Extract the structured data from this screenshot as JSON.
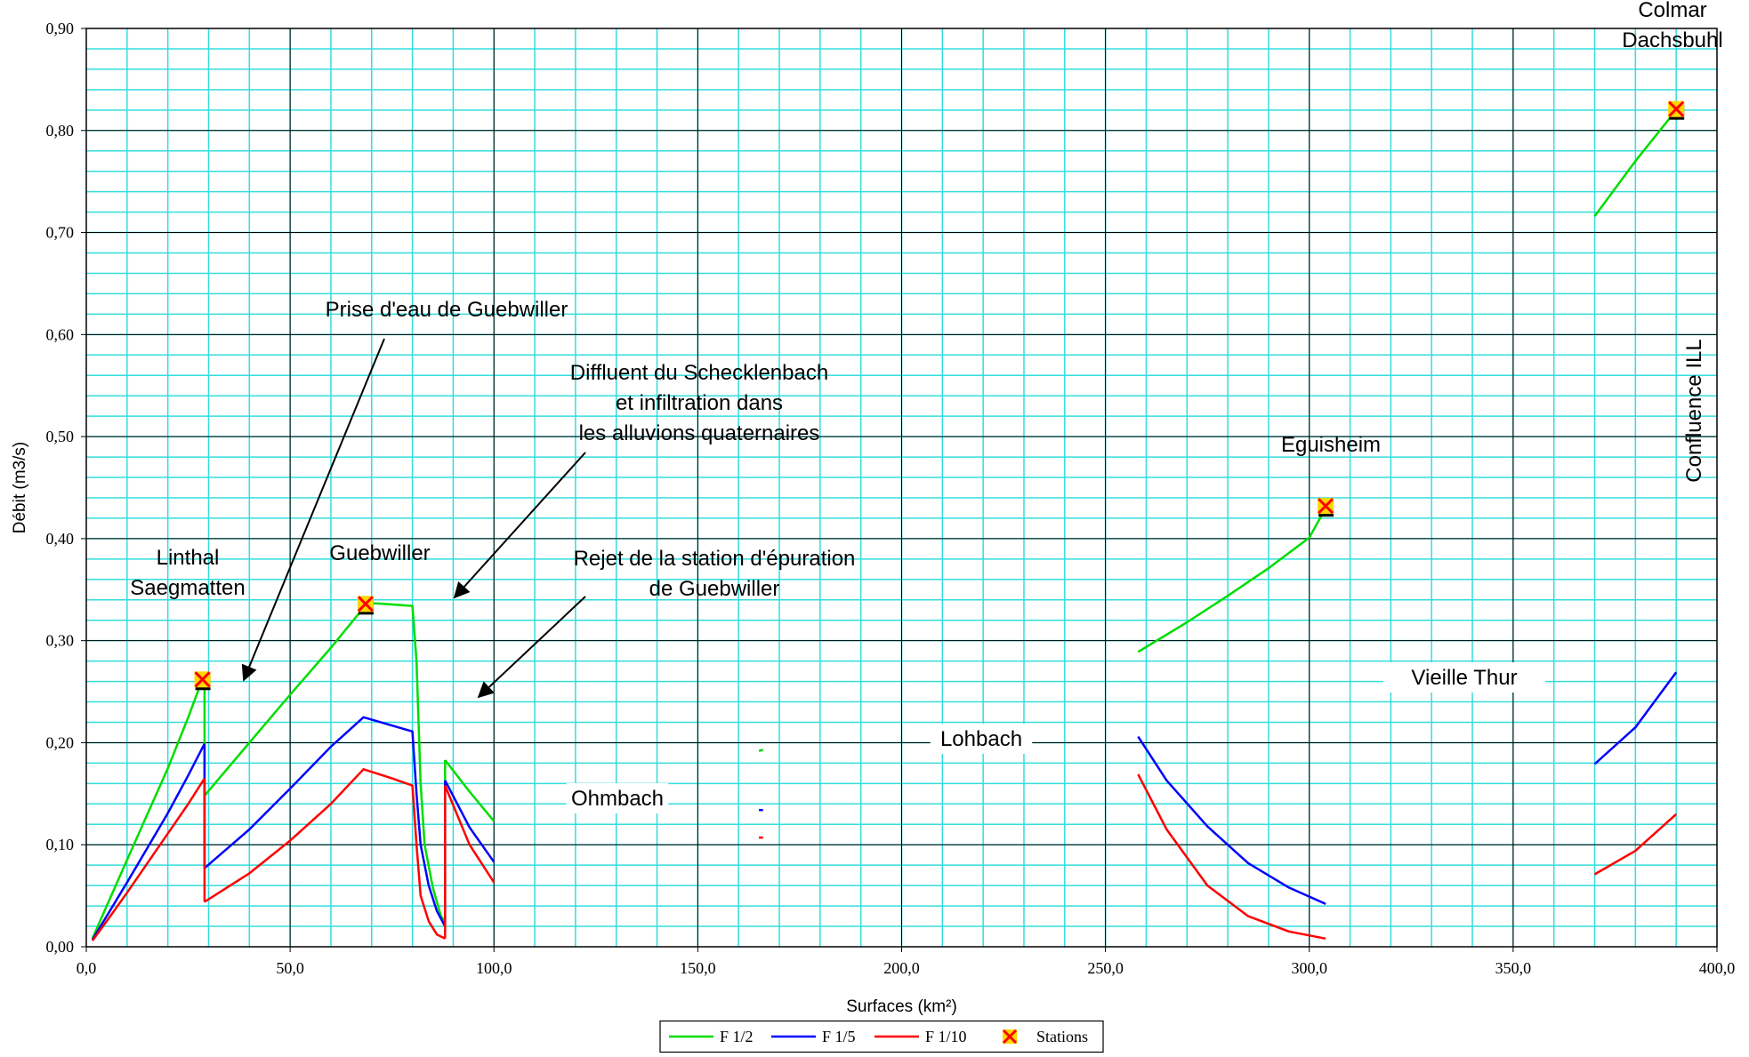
{
  "chart_data": {
    "type": "line",
    "title": "",
    "xlabel": "Surfaces (km²)",
    "ylabel": "Débit (m3/s)",
    "xlim": [
      0,
      400
    ],
    "ylim": [
      0,
      0.9
    ],
    "x_ticks": [
      "0,0",
      "50,0",
      "100,0",
      "150,0",
      "200,0",
      "250,0",
      "300,0",
      "350,0",
      "400,0"
    ],
    "y_ticks": [
      "0,00",
      "0,10",
      "0,20",
      "0,30",
      "0,40",
      "0,50",
      "0,60",
      "0,70",
      "0,80",
      "0,90"
    ],
    "grid": true,
    "legend_position": "bottom",
    "series": [
      {
        "name": "F 1/2",
        "color": "#00dd00",
        "segments": [
          [
            [
              1.5,
              0.008
            ],
            [
              5,
              0.04
            ],
            [
              10,
              0.085
            ],
            [
              15,
              0.13
            ],
            [
              20,
              0.175
            ],
            [
              25,
              0.225
            ],
            [
              28,
              0.257
            ],
            [
              29,
              0.262
            ]
          ],
          [
            [
              29,
              0.262
            ],
            [
              29,
              0.148
            ]
          ],
          [
            [
              29,
              0.148
            ],
            [
              40,
              0.2
            ],
            [
              50,
              0.247
            ],
            [
              60,
              0.293
            ],
            [
              69,
              0.337
            ],
            [
              73,
              0.336
            ],
            [
              80,
              0.334
            ],
            [
              81,
              0.28
            ],
            [
              82,
              0.16
            ],
            [
              83,
              0.1
            ],
            [
              85,
              0.058
            ],
            [
              87,
              0.03
            ],
            [
              88,
              0.025
            ]
          ],
          [
            [
              88,
              0.025
            ],
            [
              88,
              0.183
            ]
          ],
          [
            [
              88,
              0.183
            ],
            [
              94,
              0.152
            ],
            [
              100,
              0.123
            ]
          ],
          [
            [
              165,
              0.192
            ],
            [
              166,
              0.193
            ]
          ],
          [
            [
              258,
              0.289
            ],
            [
              270,
              0.318
            ],
            [
              280,
              0.344
            ],
            [
              290,
              0.371
            ],
            [
              300,
              0.401
            ],
            [
              304,
              0.43
            ]
          ],
          [
            [
              370,
              0.716
            ],
            [
              380,
              0.77
            ],
            [
              390,
              0.82
            ]
          ]
        ]
      },
      {
        "name": "F 1/5",
        "color": "#0000ff",
        "segments": [
          [
            [
              1.5,
              0.007
            ],
            [
              5,
              0.03
            ],
            [
              10,
              0.063
            ],
            [
              15,
              0.097
            ],
            [
              20,
              0.131
            ],
            [
              25,
              0.168
            ],
            [
              29,
              0.199
            ]
          ],
          [
            [
              29,
              0.199
            ],
            [
              29,
              0.077
            ]
          ],
          [
            [
              29,
              0.077
            ],
            [
              40,
              0.115
            ],
            [
              50,
              0.155
            ],
            [
              60,
              0.196
            ],
            [
              68,
              0.225
            ],
            [
              74,
              0.218
            ],
            [
              80,
              0.211
            ],
            [
              81,
              0.15
            ],
            [
              82,
              0.1
            ],
            [
              84,
              0.06
            ],
            [
              86,
              0.035
            ],
            [
              88,
              0.02
            ]
          ],
          [
            [
              88,
              0.02
            ],
            [
              88,
              0.163
            ]
          ],
          [
            [
              88,
              0.163
            ],
            [
              94,
              0.117
            ],
            [
              100,
              0.083
            ]
          ],
          [
            [
              165,
              0.134
            ],
            [
              166,
              0.134
            ]
          ],
          [
            [
              258,
              0.206
            ],
            [
              265,
              0.163
            ],
            [
              275,
              0.118
            ],
            [
              285,
              0.082
            ],
            [
              295,
              0.058
            ],
            [
              304,
              0.042
            ]
          ],
          [
            [
              370,
              0.179
            ],
            [
              380,
              0.215
            ],
            [
              390,
              0.269
            ]
          ]
        ]
      },
      {
        "name": "F 1/10",
        "color": "#ff0000",
        "segments": [
          [
            [
              1.5,
              0.006
            ],
            [
              5,
              0.025
            ],
            [
              10,
              0.053
            ],
            [
              15,
              0.082
            ],
            [
              20,
              0.111
            ],
            [
              25,
              0.14
            ],
            [
              29,
              0.165
            ]
          ],
          [
            [
              29,
              0.165
            ],
            [
              29,
              0.044
            ]
          ],
          [
            [
              29,
              0.044
            ],
            [
              40,
              0.072
            ],
            [
              50,
              0.104
            ],
            [
              60,
              0.14
            ],
            [
              68,
              0.174
            ],
            [
              75,
              0.165
            ],
            [
              80,
              0.158
            ],
            [
              81,
              0.1
            ],
            [
              82,
              0.05
            ],
            [
              84,
              0.025
            ],
            [
              86,
              0.012
            ],
            [
              88,
              0.008
            ]
          ],
          [
            [
              88,
              0.008
            ],
            [
              88,
              0.158
            ]
          ],
          [
            [
              88,
              0.158
            ],
            [
              94,
              0.1
            ],
            [
              100,
              0.063
            ]
          ],
          [
            [
              165,
              0.107
            ],
            [
              166,
              0.107
            ]
          ],
          [
            [
              258,
              0.169
            ],
            [
              265,
              0.115
            ],
            [
              275,
              0.06
            ],
            [
              285,
              0.03
            ],
            [
              295,
              0.015
            ],
            [
              304,
              0.008
            ]
          ],
          [
            [
              370,
              0.071
            ],
            [
              380,
              0.094
            ],
            [
              390,
              0.13
            ]
          ]
        ]
      }
    ],
    "stations": {
      "name": "Stations",
      "color": "#ff0000",
      "marker_fill": "#ffd700",
      "points": [
        [
          28.5,
          0.262
        ],
        [
          68.5,
          0.336
        ],
        [
          304,
          0.432
        ],
        [
          390,
          0.821
        ]
      ]
    },
    "annotations": [
      {
        "lines": [
          "Linthal",
          "Saegmatten"
        ]
      },
      {
        "lines": [
          "Guebwiller"
        ]
      },
      {
        "lines": [
          "Prise d'eau de Guebwiller"
        ]
      },
      {
        "lines": [
          "Diffluent du Schecklenbach",
          "et infiltration dans",
          "les alluvions quaternaires"
        ]
      },
      {
        "lines": [
          "Rejet de la station d'épuration",
          "de Guebwiller"
        ]
      },
      {
        "lines": [
          "Ohmbach"
        ]
      },
      {
        "lines": [
          "Lohbach"
        ]
      },
      {
        "lines": [
          "Eguisheim"
        ]
      },
      {
        "lines": [
          "Vieille Thur"
        ]
      },
      {
        "lines": [
          "Colmar",
          "Dachsbuhl"
        ]
      },
      {
        "lines": [
          "Confluence ILL"
        ]
      }
    ]
  }
}
